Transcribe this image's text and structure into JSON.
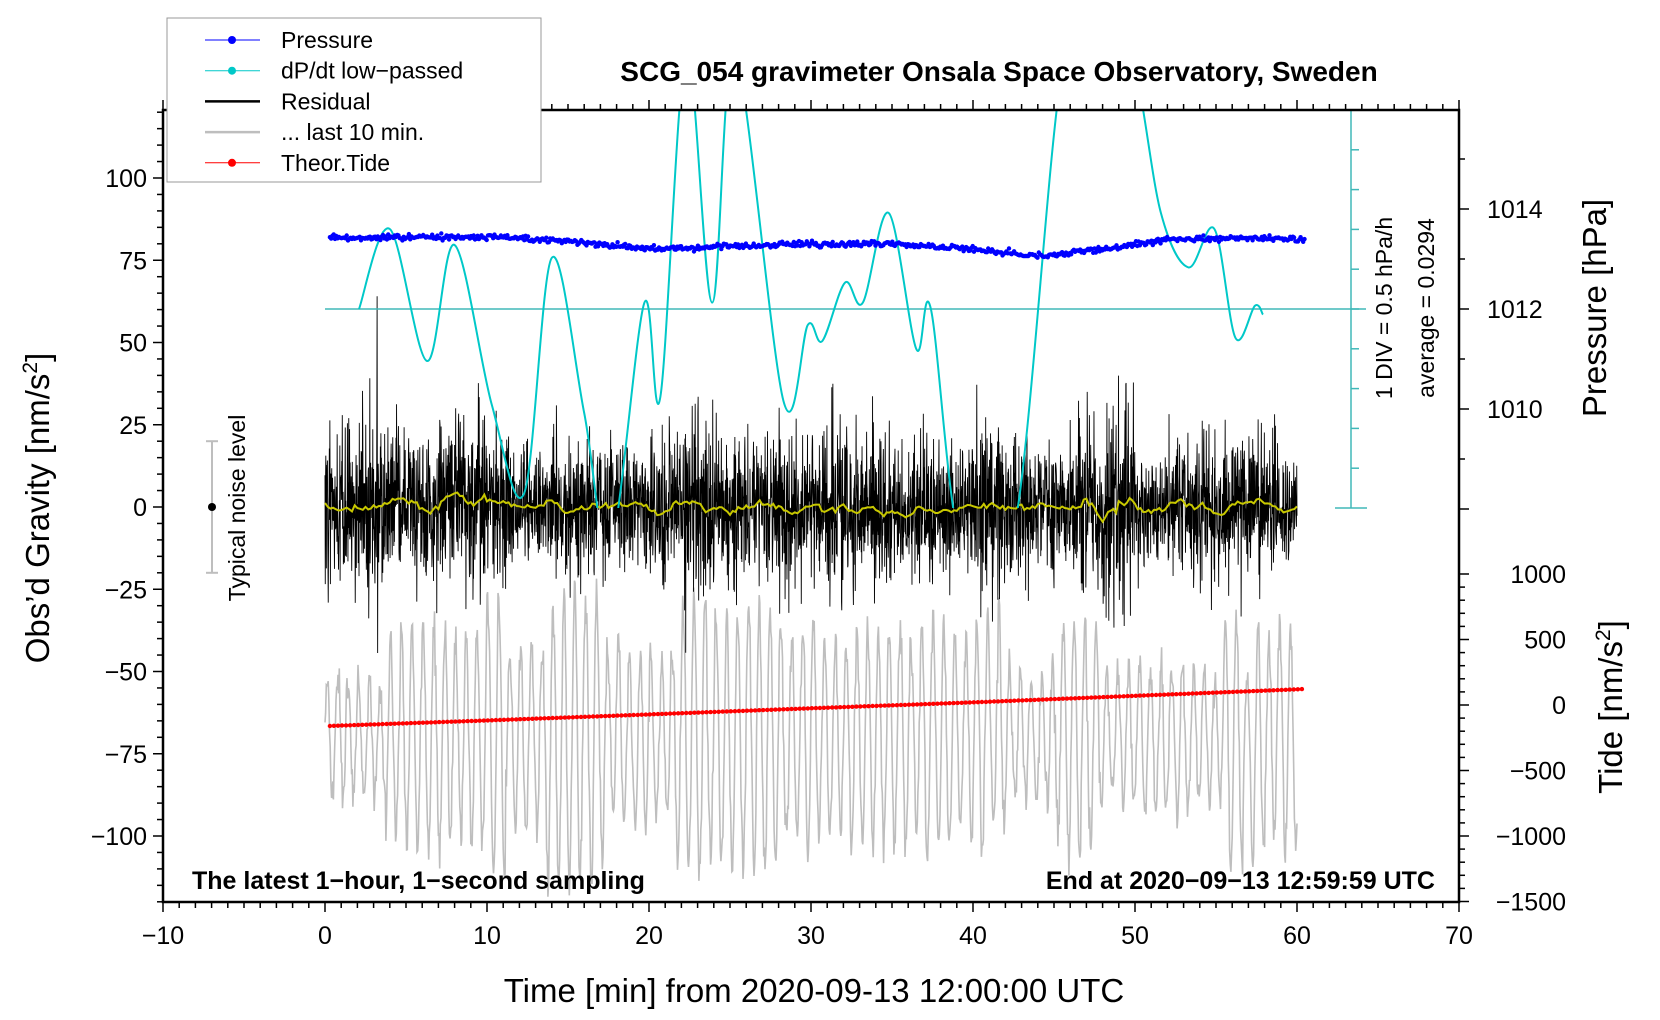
{
  "chart_data": {
    "type": "line",
    "title": "SCG_054 gravimeter Onsala Space Observatory, Sweden",
    "xlabel": "Time [min] from 2020-09-13 12:00:00 UTC",
    "ylabel_left": "Obs’d Gravity [nm/s²]",
    "ylabel_left_main": "Obs’d Gravity [nm/s",
    "ylabel_left_sup": "2",
    "ylabel_left_end": "]",
    "ylabel_pressure": "Pressure [hPa]",
    "ylabel_tide_main": "Tide [nm/s",
    "ylabel_tide_sup": "2",
    "ylabel_tide_end": "]",
    "xlim": [
      -10,
      70
    ],
    "ylim": [
      -120,
      120
    ],
    "x_ticks": [
      "−10",
      "0",
      "10",
      "20",
      "30",
      "40",
      "50",
      "60",
      "70"
    ],
    "x_tick_values": [
      -10,
      0,
      10,
      20,
      30,
      40,
      50,
      60,
      70
    ],
    "y_ticks": [
      "100",
      "75",
      "50",
      "25",
      "0",
      "−25",
      "−50",
      "−75",
      "−100"
    ],
    "y_tick_values": [
      100,
      75,
      50,
      25,
      0,
      -25,
      -50,
      -75,
      -100
    ],
    "pressure_ticks": [
      "1014",
      "1012",
      "1010"
    ],
    "pressure_tick_values": [
      1014,
      1012,
      1010
    ],
    "tide_ticks": [
      "1000",
      "500",
      "0",
      "−500",
      "−1000",
      "−1500"
    ],
    "tide_tick_values": [
      1000,
      500,
      0,
      -500,
      -1000,
      -1500
    ],
    "legend": {
      "position": "top-left",
      "entries": [
        {
          "label": "Pressure",
          "color": "#0000ff",
          "marker": true
        },
        {
          "label": "dP/dt low−passed",
          "color": "#00c8c8",
          "marker": true
        },
        {
          "label": "Residual",
          "color": "#000000",
          "marker": false
        },
        {
          "label": "... last 10 min.",
          "color": "#bebebe",
          "marker": false
        },
        {
          "label": "Theor.Tide",
          "color": "#ff0000",
          "marker": true
        }
      ]
    },
    "annotations": {
      "noise_label": "Typical noise level",
      "noise_range": [
        -20,
        20
      ],
      "div_label": "1 DIV = 0.5 hPa/h",
      "average_label": "average = 0.0294",
      "bottom_left": "The latest 1−hour, 1−second sampling",
      "bottom_right": "End at 2020−09−13 12:59:59 UTC"
    },
    "series": {
      "pressure_hPa": {
        "t": [
          0.3,
          5,
          10,
          15,
          20,
          25,
          30,
          35,
          40,
          44,
          48,
          52,
          56,
          60.5
        ],
        "values": [
          1013.42,
          1013.43,
          1013.45,
          1013.35,
          1013.2,
          1013.25,
          1013.3,
          1013.3,
          1013.2,
          1013.05,
          1013.2,
          1013.38,
          1013.42,
          1013.4
        ],
        "scatter_hPa": 0.05
      },
      "dpdt_hPa_per_h": {
        "t": [
          2.1,
          4,
          6.3,
          8,
          10.3,
          12.3,
          14,
          16,
          17.6,
          19.7,
          20.7,
          22.3,
          23.9,
          25.3,
          28.3,
          29.8,
          30.7,
          32.1,
          33.2,
          34.8,
          36.5,
          37.4,
          39.3,
          42.5,
          45.5,
          48,
          50,
          51.6,
          53.3,
          54.9,
          56.2,
          57.4,
          57.9
        ],
        "values": [
          0,
          1.0,
          -0.65,
          0.8,
          -1.2,
          -2.3,
          0.64,
          -1.3,
          -3.0,
          0.07,
          -1.1,
          3.2,
          0.08,
          3.2,
          -1.15,
          -0.2,
          -0.4,
          0.33,
          0.08,
          1.2,
          -0.5,
          0,
          -3.0,
          -2.8,
          3.0,
          4.0,
          3.0,
          1.2,
          0.52,
          1.0,
          -0.36,
          0.04,
          -0.07
        ]
      },
      "residual_nm_s2": {
        "t_range": [
          0,
          60
        ],
        "sampling_s": 1,
        "std": 12,
        "mean": 0
      },
      "residual_smoothed_nm_s2": {
        "mean": 0,
        "amplitude": 2.5,
        "color": "#c8c800"
      },
      "last_10_min_nm_s2": {
        "t_range": [
          0,
          60
        ],
        "center": -70,
        "amplitude_range": [
          15,
          45
        ],
        "cycles_per_min": 1.5
      },
      "theor_tide_nm_s2": {
        "t": [
          0.3,
          10,
          20,
          30,
          40,
          50,
          60.5
        ],
        "values": [
          -160,
          -118,
          -72,
          -25,
          20,
          70,
          122
        ]
      }
    }
  }
}
